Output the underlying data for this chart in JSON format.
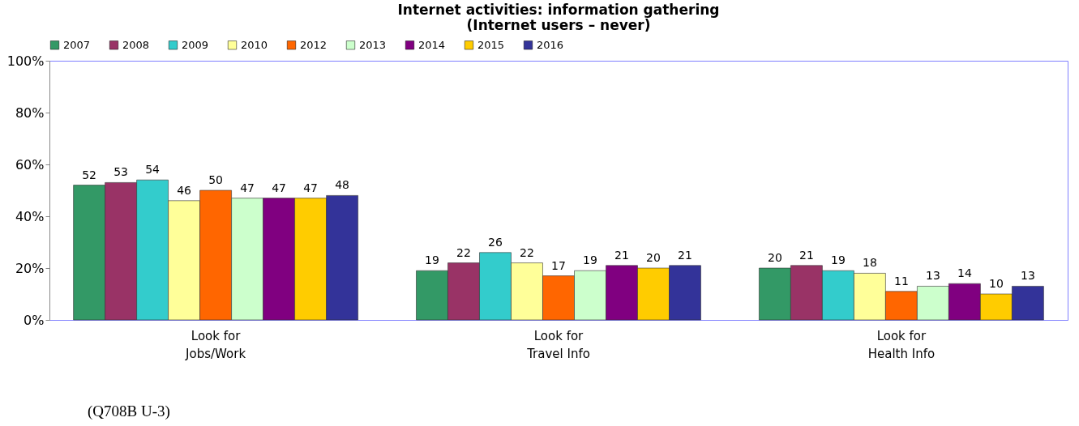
{
  "chart_data": {
    "type": "bar",
    "title": [
      "Internet activities: information gathering",
      "(Internet users – never)"
    ],
    "categories": [
      "Look for\nJobs/Work",
      "Look for\nTravel Info",
      "Look for\nHealth Info"
    ],
    "series": [
      {
        "name": "2007",
        "color": "#339966",
        "values": [
          52,
          19,
          20
        ]
      },
      {
        "name": "2008",
        "color": "#993366",
        "values": [
          53,
          22,
          21
        ]
      },
      {
        "name": "2009",
        "color": "#33cccc",
        "values": [
          54,
          26,
          19
        ]
      },
      {
        "name": "2010",
        "color": "#ffff99",
        "values": [
          46,
          22,
          18
        ]
      },
      {
        "name": "2012",
        "color": "#ff6600",
        "values": [
          50,
          17,
          11
        ]
      },
      {
        "name": "2013",
        "color": "#ccffcc",
        "values": [
          47,
          19,
          13
        ]
      },
      {
        "name": "2014",
        "color": "#800080",
        "values": [
          47,
          21,
          14
        ]
      },
      {
        "name": "2015",
        "color": "#ffcc00",
        "values": [
          47,
          20,
          10
        ]
      },
      {
        "name": "2016",
        "color": "#333399",
        "values": [
          48,
          21,
          13
        ]
      }
    ],
    "ylim": [
      0,
      100
    ],
    "yticks": [
      {
        "value": 0,
        "label": "0%"
      },
      {
        "value": 20,
        "label": "20%"
      },
      {
        "value": 40,
        "label": "40%"
      },
      {
        "value": 60,
        "label": "60%"
      },
      {
        "value": 80,
        "label": "80%"
      },
      {
        "value": 100,
        "label": "100%"
      }
    ],
    "data_labels": true,
    "legend": "top",
    "grid": false,
    "annotations": [
      "(Q708B U-3)"
    ]
  }
}
